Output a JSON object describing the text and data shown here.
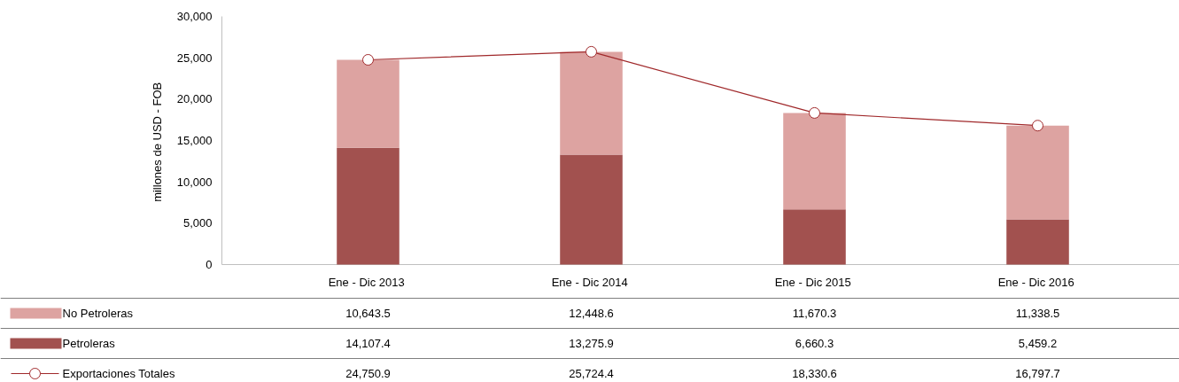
{
  "chart_data": {
    "type": "bar",
    "stacked": true,
    "ylabel": "millones de USD  - FOB",
    "categories": [
      "Ene - Dic  2013",
      "Ene - Dic  2014",
      "Ene - Dic  2015",
      "Ene - Dic  2016"
    ],
    "series": [
      {
        "name": "Petroleras",
        "color": "#a2514f",
        "values": [
          14107.4,
          13275.9,
          6660.3,
          5459.2
        ],
        "value_labels": [
          "14,107.4",
          "13,275.9",
          "6,660.3",
          "5,459.2"
        ]
      },
      {
        "name": "No Petroleras",
        "color": "#dda3a1",
        "values": [
          10643.5,
          12448.6,
          11670.3,
          11338.5
        ],
        "value_labels": [
          "10,643.5",
          "12,448.6",
          "11,670.3",
          "11,338.5"
        ]
      },
      {
        "name": "Exportaciones Totales",
        "type": "line",
        "color": "#a0292b",
        "marker": "circle",
        "values": [
          24750.9,
          25724.4,
          18330.6,
          16797.7
        ],
        "value_labels": [
          "24,750.9",
          "25,724.4",
          "18,330.6",
          "16,797.7"
        ]
      }
    ],
    "ylim": [
      0,
      30000
    ],
    "yticks": [
      {
        "value": 0,
        "label": "0"
      },
      {
        "value": 5000,
        "label": "5,000"
      },
      {
        "value": 10000,
        "label": "10,000"
      },
      {
        "value": 15000,
        "label": "15,000"
      },
      {
        "value": 20000,
        "label": "20,000"
      },
      {
        "value": 25000,
        "label": "25,000"
      },
      {
        "value": 30000,
        "label": "30,000"
      }
    ],
    "legend": "bottom",
    "grid": false
  }
}
